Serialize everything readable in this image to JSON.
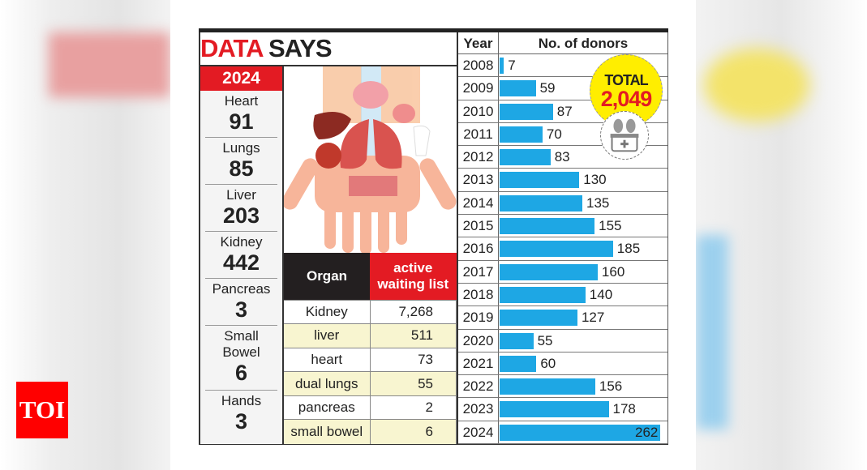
{
  "header": {
    "title_red": "DATA",
    "title_black": "SAYS"
  },
  "logo": "TOI",
  "transplants_2024": {
    "year": "2024",
    "items": [
      {
        "name": "Heart",
        "value": "91"
      },
      {
        "name": "Lungs",
        "value": "85"
      },
      {
        "name": "Liver",
        "value": "203"
      },
      {
        "name": "Kidney",
        "value": "442"
      },
      {
        "name": "Pancreas",
        "value": "3"
      },
      {
        "name": "Small Bowel",
        "value": "6"
      },
      {
        "name": "Hands",
        "value": "3"
      }
    ]
  },
  "waiting_table": {
    "headers": [
      "Organ",
      "active waiting list"
    ],
    "rows": [
      [
        "Kidney",
        "7,268"
      ],
      [
        "liver",
        "511"
      ],
      [
        "heart",
        "73"
      ],
      [
        "dual lungs",
        "55"
      ],
      [
        "pancreas",
        "2"
      ],
      [
        "small bowel",
        "6"
      ]
    ]
  },
  "total": {
    "label": "TOTAL",
    "value": "2,049"
  },
  "colors": {
    "bar": "#1ea7e4",
    "accent_red": "#e31b23",
    "badge": "#ffee00"
  },
  "chart_data": {
    "type": "bar",
    "orientation": "horizontal",
    "xlabel": "Year",
    "ylabel": "No. of donors",
    "categories": [
      "2008",
      "2009",
      "2010",
      "2011",
      "2012",
      "2013",
      "2014",
      "2015",
      "2016",
      "2017",
      "2018",
      "2019",
      "2020",
      "2021",
      "2022",
      "2023",
      "2024"
    ],
    "values": [
      7,
      59,
      87,
      70,
      83,
      130,
      135,
      155,
      185,
      160,
      140,
      127,
      55,
      60,
      156,
      178,
      262
    ],
    "grid": false
  }
}
